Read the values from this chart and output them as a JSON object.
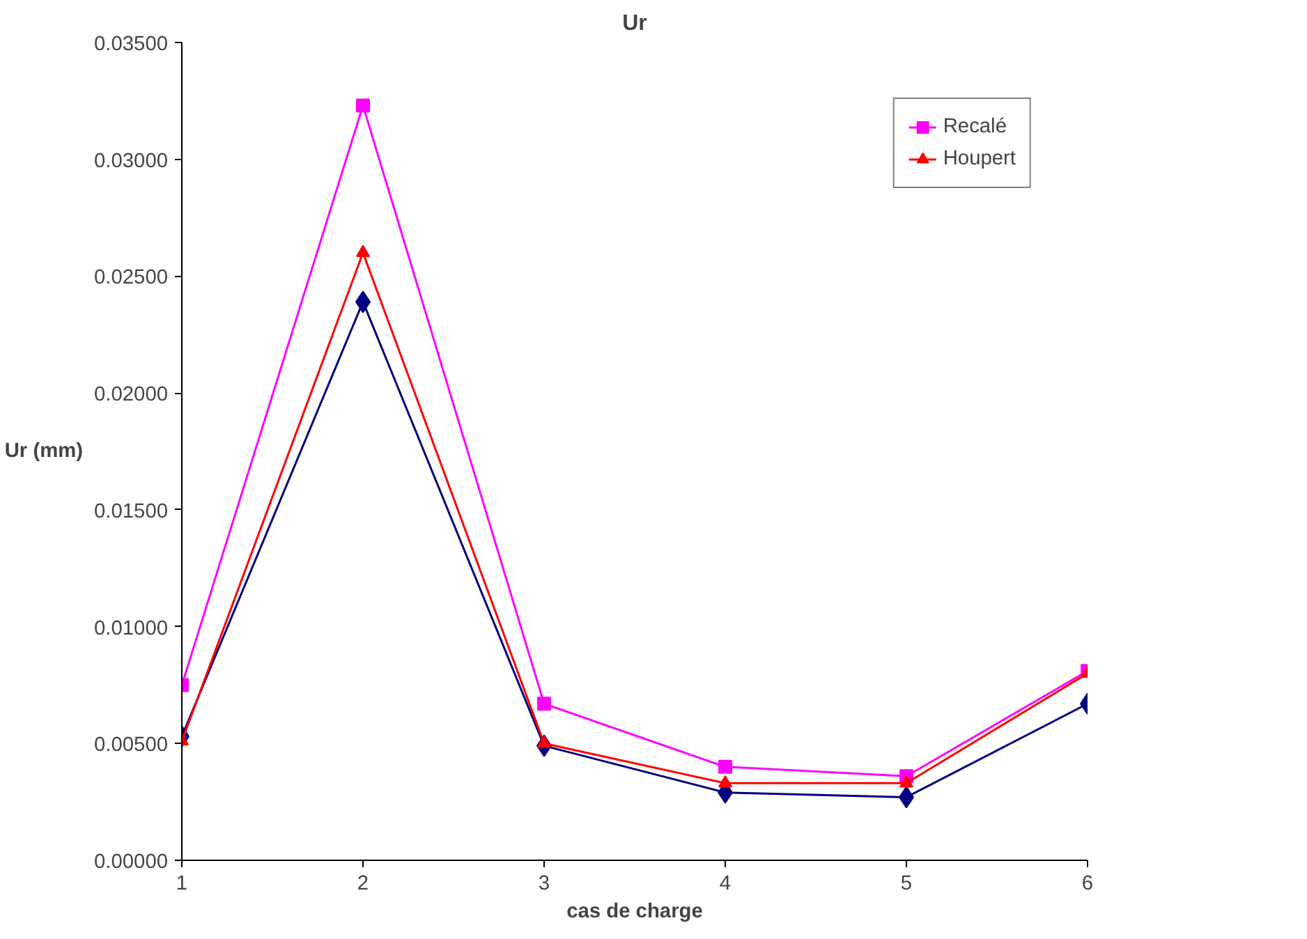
{
  "chart_data": {
    "type": "line",
    "title": "Ur",
    "xlabel": "cas de charge",
    "ylabel": "Ur (mm)",
    "x": [
      1,
      2,
      3,
      4,
      5,
      6
    ],
    "series": [
      {
        "color": "#000080",
        "marker": "diamond",
        "values": [
          0.0053,
          0.0239,
          0.0049,
          0.0029,
          0.0027,
          0.0067
        ]
      },
      {
        "name": "Recalé",
        "color": "#ff00ff",
        "marker": "square",
        "values": [
          0.0075,
          0.0323,
          0.0067,
          0.004,
          0.0036,
          0.0081
        ]
      },
      {
        "name": "Houpert",
        "color": "#ff0000",
        "marker": "triangle",
        "values": [
          0.0051,
          0.026,
          0.005,
          0.0033,
          0.0033,
          0.008
        ]
      }
    ],
    "xlim": [
      1,
      6
    ],
    "xticks": [
      1,
      2,
      3,
      4,
      5,
      6
    ],
    "ylim": [
      0,
      0.035
    ],
    "yticks": [
      {
        "value": 0,
        "label": "0.00000"
      },
      {
        "value": 0.005,
        "label": "0.00500"
      },
      {
        "value": 0.01,
        "label": "0.01000"
      },
      {
        "value": 0.015,
        "label": "0.01500"
      },
      {
        "value": 0.02,
        "label": "0.02000"
      },
      {
        "value": 0.025,
        "label": "0.02500"
      },
      {
        "value": 0.03,
        "label": "0.03000"
      },
      {
        "value": 0.035,
        "label": "0.03500"
      }
    ],
    "grid": false,
    "legend": "top right",
    "line_style": "solid"
  }
}
